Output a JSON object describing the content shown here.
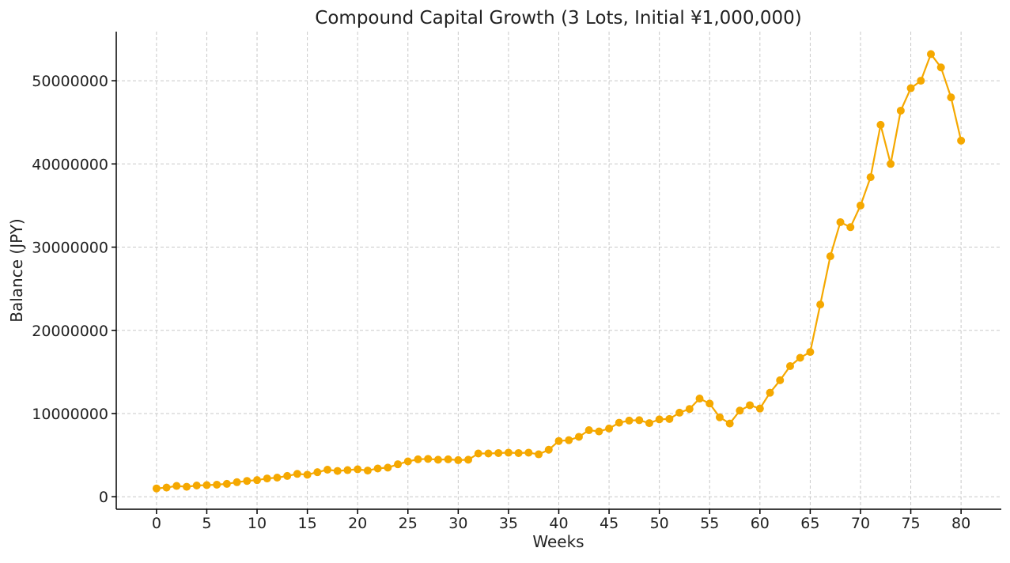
{
  "chart_data": {
    "type": "line",
    "title": "Compound Capital Growth (3 Lots, Initial ¥1,000,000)",
    "xlabel": "Weeks",
    "ylabel": "Balance (JPY)",
    "xlim": [
      -4,
      84
    ],
    "ylim": [
      -1500000,
      55900000
    ],
    "xticks": [
      0,
      5,
      10,
      15,
      20,
      25,
      30,
      35,
      40,
      45,
      50,
      55,
      60,
      65,
      70,
      75,
      80
    ],
    "yticks": [
      0,
      10000000,
      20000000,
      30000000,
      40000000,
      50000000
    ],
    "xtick_labels": [
      "0",
      "5",
      "10",
      "15",
      "20",
      "25",
      "30",
      "35",
      "40",
      "45",
      "50",
      "55",
      "60",
      "65",
      "70",
      "75",
      "80"
    ],
    "ytick_labels": [
      "0",
      "10000000",
      "20000000",
      "30000000",
      "40000000",
      "50000000"
    ],
    "grid": true,
    "color": "#f5a800",
    "series": [
      {
        "x": [
          0,
          1,
          2,
          3,
          4,
          5,
          6,
          7,
          8,
          9,
          10,
          11,
          12,
          13,
          14,
          15,
          16,
          17,
          18,
          19,
          20,
          21,
          22,
          23,
          24,
          25,
          26,
          27,
          28,
          29,
          30,
          31,
          32,
          33,
          34,
          35,
          36,
          37,
          38,
          39,
          40,
          41,
          42,
          43,
          44,
          45,
          46,
          47,
          48,
          49,
          50,
          51,
          52,
          53,
          54,
          55,
          56,
          57,
          58,
          59,
          60,
          61,
          62,
          63,
          64,
          65,
          66,
          67,
          68,
          69,
          70,
          71,
          72,
          73,
          74,
          75,
          76,
          77,
          78,
          79,
          80
        ],
        "values": [
          1000000,
          1100000,
          1300000,
          1200000,
          1350000,
          1400000,
          1450000,
          1550000,
          1750000,
          1900000,
          2000000,
          2200000,
          2300000,
          2500000,
          2750000,
          2650000,
          2950000,
          3250000,
          3100000,
          3200000,
          3300000,
          3150000,
          3400000,
          3500000,
          3900000,
          4250000,
          4500000,
          4550000,
          4450000,
          4500000,
          4400000,
          4450000,
          5200000,
          5200000,
          5250000,
          5300000,
          5250000,
          5300000,
          5100000,
          5650000,
          6700000,
          6800000,
          7200000,
          8000000,
          7850000,
          8200000,
          8900000,
          9150000,
          9200000,
          8850000,
          9300000,
          9350000,
          10100000,
          10550000,
          11800000,
          11200000,
          9550000,
          8800000,
          10350000,
          11000000,
          10600000,
          12500000,
          14000000,
          15700000,
          16700000,
          17400000,
          23100000,
          28900000,
          33000000,
          32400000,
          35000000,
          38400000,
          44700000,
          40000000,
          46400000,
          49100000,
          50000000,
          53200000,
          51600000,
          48000000,
          42800000
        ]
      }
    ]
  }
}
